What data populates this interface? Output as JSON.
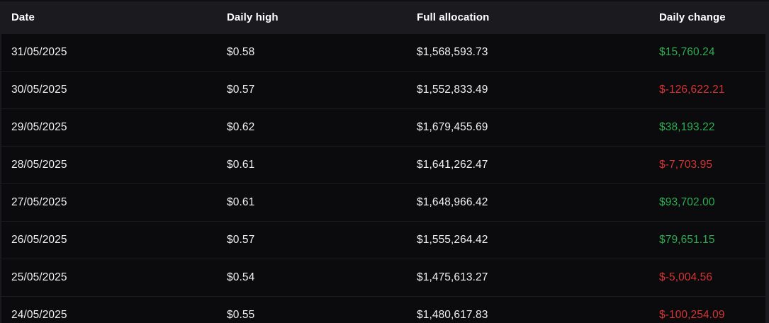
{
  "table": {
    "columns": [
      {
        "key": "date",
        "label": "Date"
      },
      {
        "key": "daily_high",
        "label": "Daily high"
      },
      {
        "key": "full_allocation",
        "label": "Full allocation"
      },
      {
        "key": "daily_change",
        "label": "Daily change"
      }
    ],
    "rows": [
      {
        "date": "31/05/2025",
        "daily_high": "$0.58",
        "full_allocation": "$1,568,593.73",
        "daily_change": "$15,760.24",
        "change_direction": "positive"
      },
      {
        "date": "30/05/2025",
        "daily_high": "$0.57",
        "full_allocation": "$1,552,833.49",
        "daily_change": "$-126,622.21",
        "change_direction": "negative"
      },
      {
        "date": "29/05/2025",
        "daily_high": "$0.62",
        "full_allocation": "$1,679,455.69",
        "daily_change": "$38,193.22",
        "change_direction": "positive"
      },
      {
        "date": "28/05/2025",
        "daily_high": "$0.61",
        "full_allocation": "$1,641,262.47",
        "daily_change": "$-7,703.95",
        "change_direction": "negative"
      },
      {
        "date": "27/05/2025",
        "daily_high": "$0.61",
        "full_allocation": "$1,648,966.42",
        "daily_change": "$93,702.00",
        "change_direction": "positive"
      },
      {
        "date": "26/05/2025",
        "daily_high": "$0.57",
        "full_allocation": "$1,555,264.42",
        "daily_change": "$79,651.15",
        "change_direction": "positive"
      },
      {
        "date": "25/05/2025",
        "daily_high": "$0.54",
        "full_allocation": "$1,475,613.27",
        "daily_change": "$-5,004.56",
        "change_direction": "negative"
      },
      {
        "date": "24/05/2025",
        "daily_high": "$0.55",
        "full_allocation": "$1,480,617.83",
        "daily_change": "$-100,254.09",
        "change_direction": "negative"
      }
    ],
    "colors": {
      "positive": "#2dac53",
      "negative": "#d43434",
      "header_background": "#1b1b1f",
      "row_background": "#0b0b0d",
      "text": "#f2f2f2"
    }
  }
}
